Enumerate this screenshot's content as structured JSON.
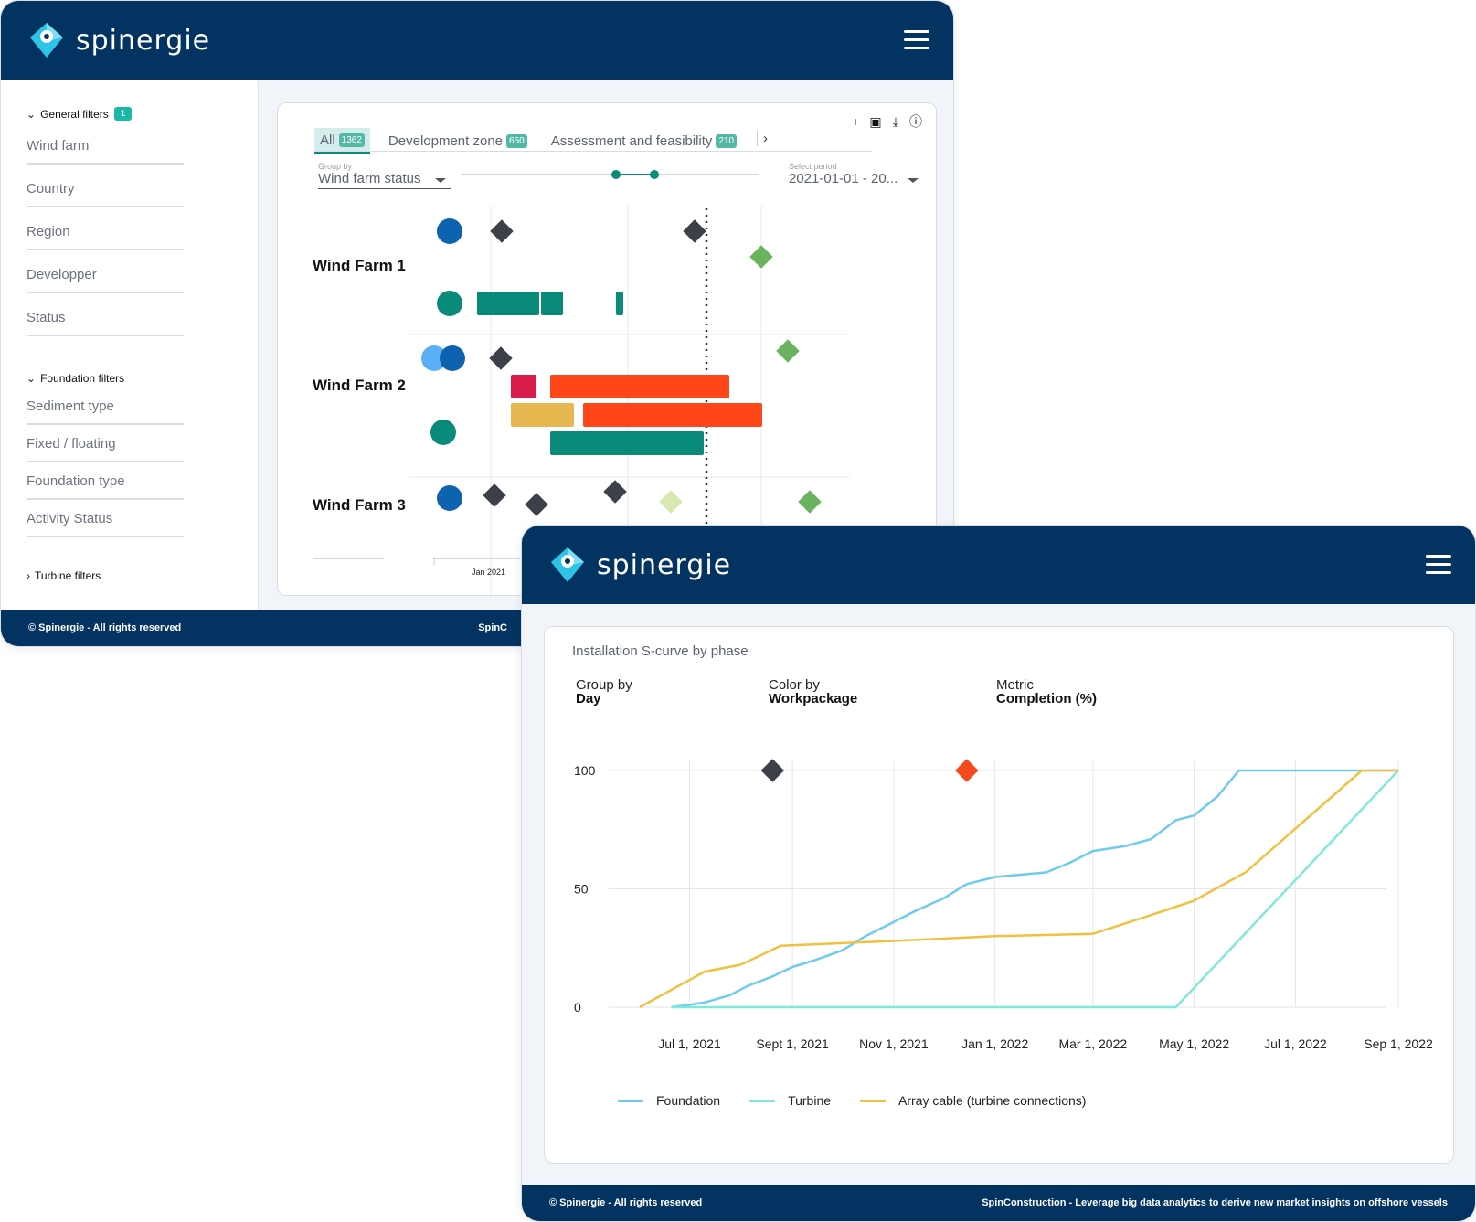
{
  "brand": {
    "name": "spinergie",
    "color": "#033360",
    "accent": "#0a8a7a"
  },
  "window1": {
    "sidebar": {
      "general": {
        "label": "General filters",
        "badge": "1",
        "items": [
          "Wind farm",
          "Country",
          "Region",
          "Developper",
          "Status"
        ]
      },
      "foundation": {
        "label": "Foundation filters",
        "items": [
          "Sediment type",
          "Fixed / floating",
          "Foundation type",
          "Activity Status"
        ]
      },
      "turbine": {
        "label": "Turbine filters"
      }
    },
    "tabs": [
      {
        "label": "All",
        "count": "1362"
      },
      {
        "label": "Development zone",
        "count": "650"
      },
      {
        "label": "Assessment and feasibility",
        "count": "210"
      }
    ],
    "tools": [
      "plus-icon",
      "image-icon",
      "download-icon",
      "info-icon"
    ],
    "group_by": {
      "label": "Group by",
      "value": "Wind farm status"
    },
    "period": {
      "label": "Select period",
      "value": "2021-01-01 - 20..."
    },
    "farms": [
      "Wind Farm 1",
      "Wind Farm 2",
      "Wind Farm 3"
    ],
    "axis_label": "Jan 2021",
    "footer": {
      "left": "© Spinergie - All rights reserved",
      "right": "SpinC"
    }
  },
  "window2": {
    "title": "Installation S-curve by phase",
    "controls": [
      {
        "label": "Group by",
        "value": "Day"
      },
      {
        "label": "Color by",
        "value": "Workpackage"
      },
      {
        "label": "Metric",
        "value": "Completion (%)"
      }
    ],
    "footer": {
      "left": "© Spinergie - All rights reserved",
      "right": "SpinConstruction - Leverage big data analytics to derive new market insights on offshore vessels"
    }
  },
  "chart_data": {
    "type": "line",
    "title": "Installation S-curve by phase",
    "x_ticks": [
      "Jul 1, 2021",
      "Sept 1, 2021",
      "Nov 1, 2021",
      "Jan 1, 2022",
      "Mar 1, 2022",
      "May 1, 2022",
      "Jul 1, 2022",
      "Sep 1, 2022"
    ],
    "y_ticks": [
      "0",
      "50",
      "100"
    ],
    "ylim": [
      0,
      100
    ],
    "xlim": [
      "2021-06-01",
      "2022-09-01"
    ],
    "grid": true,
    "legend_position": "bottom",
    "series": [
      {
        "name": "Foundation",
        "color": "#6fcaf0",
        "points": [
          [
            "2021-06-20",
            0
          ],
          [
            "2021-07-01",
            1
          ],
          [
            "2021-07-10",
            2
          ],
          [
            "2021-07-25",
            5
          ],
          [
            "2021-08-05",
            9
          ],
          [
            "2021-08-20",
            13
          ],
          [
            "2021-09-01",
            17
          ],
          [
            "2021-09-15",
            20
          ],
          [
            "2021-10-01",
            24
          ],
          [
            "2021-10-15",
            30
          ],
          [
            "2021-11-01",
            36
          ],
          [
            "2021-11-15",
            41
          ],
          [
            "2021-12-01",
            46
          ],
          [
            "2021-12-15",
            52
          ],
          [
            "2022-01-01",
            55
          ],
          [
            "2022-02-01",
            57
          ],
          [
            "2022-02-15",
            61
          ],
          [
            "2022-03-01",
            66
          ],
          [
            "2022-03-20",
            68
          ],
          [
            "2022-04-05",
            71
          ],
          [
            "2022-04-20",
            79
          ],
          [
            "2022-05-01",
            81
          ],
          [
            "2022-05-15",
            89
          ],
          [
            "2022-05-28",
            100
          ],
          [
            "2022-09-01",
            100
          ]
        ]
      },
      {
        "name": "Turbine",
        "color": "#7fe8dc",
        "points": [
          [
            "2021-06-20",
            0
          ],
          [
            "2022-04-20",
            0
          ],
          [
            "2022-09-01",
            100
          ]
        ]
      },
      {
        "name": "Array cable (turbine connections)",
        "color": "#f0c040",
        "points": [
          [
            "2021-06-01",
            0
          ],
          [
            "2021-07-10",
            15
          ],
          [
            "2021-08-01",
            18
          ],
          [
            "2021-08-25",
            26
          ],
          [
            "2021-11-01",
            28
          ],
          [
            "2022-01-01",
            30
          ],
          [
            "2022-03-01",
            31
          ],
          [
            "2022-04-01",
            38
          ],
          [
            "2022-05-01",
            45
          ],
          [
            "2022-06-01",
            57
          ],
          [
            "2022-08-10",
            100
          ],
          [
            "2022-09-01",
            100
          ]
        ]
      }
    ],
    "markers": [
      {
        "date": "2021-08-20",
        "value": 100,
        "color": "#3c4048"
      },
      {
        "date": "2021-12-15",
        "value": 100,
        "color": "#f44a1e"
      }
    ]
  }
}
